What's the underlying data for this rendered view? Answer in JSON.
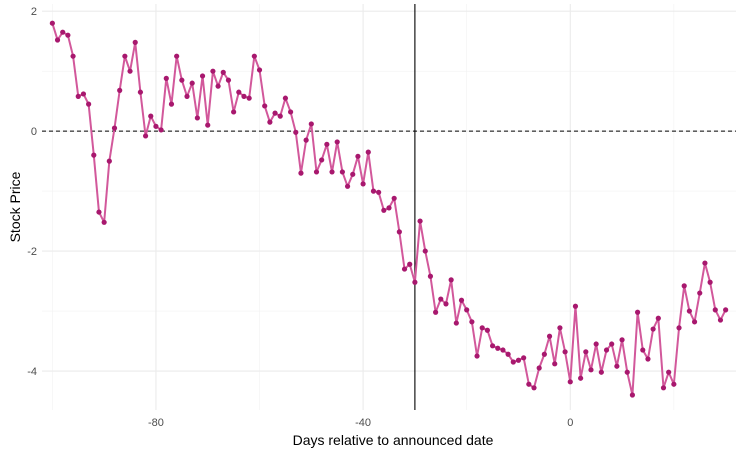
{
  "chart_data": {
    "type": "line",
    "title": "",
    "xlabel": "Days relative to announced date",
    "ylabel": "Stock Price",
    "xlim": [
      -102,
      32
    ],
    "ylim": [
      -4.65,
      2.12
    ],
    "x_ticks": [
      -80,
      -40,
      0
    ],
    "x_tick_labels": [
      "-80",
      "-40",
      "0"
    ],
    "x_minor_ticks": [
      -100,
      -60,
      -20,
      20
    ],
    "y_ticks": [
      -4,
      -2,
      0,
      2
    ],
    "y_tick_labels": [
      "-4",
      "-2",
      "0",
      "2"
    ],
    "y_minor_ticks": [
      -3,
      -1,
      1
    ],
    "grid": true,
    "legend": "none",
    "hline": {
      "y": 0,
      "style": "dashed",
      "color": "#000000"
    },
    "vline": {
      "x": -30,
      "style": "solid",
      "color": "#000000"
    },
    "line_color": "#d2589b",
    "point_color": "#a8186e",
    "series": [
      {
        "x": [
          -100,
          -99,
          -98,
          -97,
          -96,
          -95,
          -94,
          -93,
          -92,
          -91,
          -90,
          -89,
          -88,
          -87,
          -86,
          -85,
          -84,
          -83,
          -82,
          -81,
          -80,
          -79,
          -78,
          -77,
          -76,
          -75,
          -74,
          -73,
          -72,
          -71,
          -70,
          -69,
          -68,
          -67,
          -66,
          -65,
          -64,
          -63,
          -62,
          -61,
          -60,
          -59,
          -58,
          -57,
          -56,
          -55,
          -54,
          -53,
          -52,
          -51,
          -50,
          -49,
          -48,
          -47,
          -46,
          -45,
          -44,
          -43,
          -42,
          -41,
          -40,
          -39,
          -38,
          -37,
          -36,
          -35,
          -34,
          -33,
          -32,
          -31,
          -30,
          -29,
          -28,
          -27,
          -26,
          -25,
          -24,
          -23,
          -22,
          -21,
          -20,
          -19,
          -18,
          -17,
          -16,
          -15,
          -14,
          -13,
          -12,
          -11,
          -10,
          -9,
          -8,
          -7,
          -6,
          -5,
          -4,
          -3,
          -2,
          -1,
          0,
          1,
          2,
          3,
          4,
          5,
          6,
          7,
          8,
          9,
          10,
          11,
          12,
          13,
          14,
          15,
          16,
          17,
          18,
          19,
          20,
          21,
          22,
          23,
          24,
          25,
          26,
          27,
          28,
          29,
          30
        ],
        "y": [
          1.8,
          1.52,
          1.65,
          1.6,
          1.25,
          0.58,
          0.62,
          0.45,
          -0.4,
          -1.35,
          -1.52,
          -0.5,
          0.05,
          0.68,
          1.25,
          1.0,
          1.48,
          0.65,
          -0.08,
          0.25,
          0.08,
          0.02,
          0.88,
          0.45,
          1.25,
          0.85,
          0.58,
          0.8,
          0.22,
          0.92,
          0.1,
          1.0,
          0.75,
          0.98,
          0.85,
          0.32,
          0.65,
          0.58,
          0.55,
          1.25,
          1.02,
          0.42,
          0.15,
          0.3,
          0.25,
          0.55,
          0.32,
          -0.02,
          -0.7,
          -0.15,
          0.12,
          -0.68,
          -0.48,
          -0.22,
          -0.68,
          -0.18,
          -0.68,
          -0.92,
          -0.72,
          -0.42,
          -0.88,
          -0.35,
          -1.0,
          -1.02,
          -1.32,
          -1.28,
          -1.12,
          -1.68,
          -2.3,
          -2.22,
          -2.52,
          -1.5,
          -2.0,
          -2.42,
          -3.02,
          -2.8,
          -2.88,
          -2.48,
          -3.2,
          -2.82,
          -2.98,
          -3.18,
          -3.75,
          -3.28,
          -3.32,
          -3.58,
          -3.62,
          -3.65,
          -3.72,
          -3.85,
          -3.82,
          -3.78,
          -4.22,
          -4.28,
          -3.95,
          -3.72,
          -3.42,
          -3.88,
          -3.28,
          -3.68,
          -4.18,
          -2.92,
          -4.12,
          -3.68,
          -3.98,
          -3.55,
          -4.02,
          -3.65,
          -3.55,
          -3.92,
          -3.48,
          -4.02,
          -4.4,
          -3.02,
          -3.65,
          -3.8,
          -3.3,
          -3.12,
          -4.28,
          -4.02,
          -4.22,
          -3.28,
          -2.58,
          -3.0,
          -3.18,
          -2.7,
          -2.2,
          -2.52,
          -2.98,
          -3.15,
          -2.98
        ]
      }
    ]
  }
}
